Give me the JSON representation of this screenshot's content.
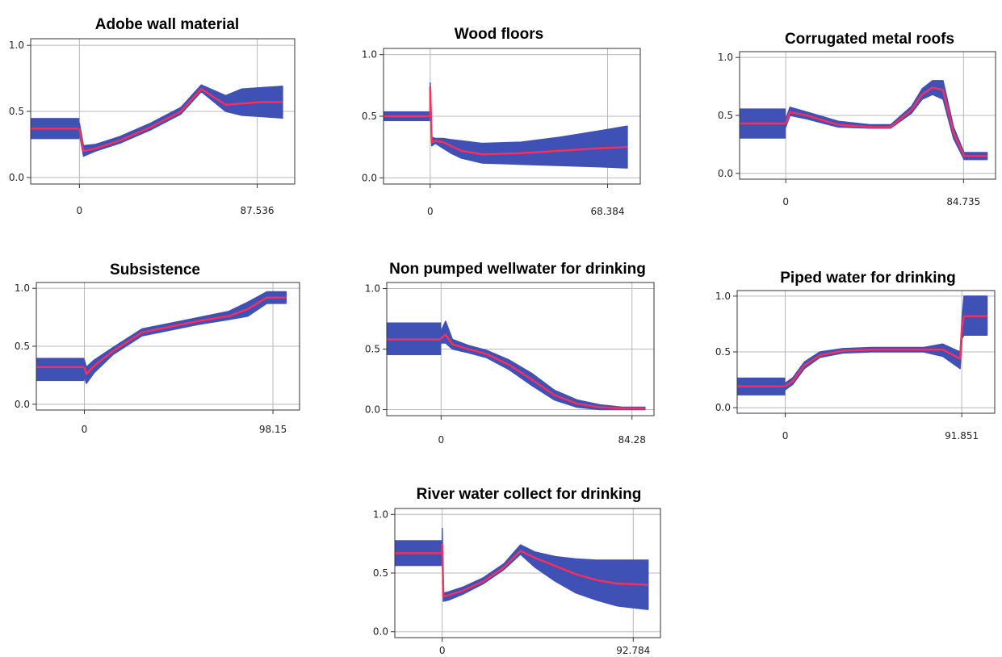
{
  "colors": {
    "band": "#3f51b5",
    "line": "#ff2d5a",
    "grid": "#b8b8b8",
    "frame": "#333333"
  },
  "chart_data": [
    {
      "type": "line",
      "panel": "a",
      "title": "Adobe wall material",
      "xlim": [
        -24,
        106
      ],
      "ylim": [
        -0.05,
        1.05
      ],
      "x_ticks": [
        "0",
        "87.536"
      ],
      "x_tick_values": [
        0,
        87.536
      ],
      "y_ticks": [
        "0.0",
        "0.5",
        "1.0"
      ],
      "y_tick_values": [
        0,
        0.5,
        1
      ],
      "step": {
        "x0": -24,
        "x1": 0,
        "mean": 0.37,
        "lower": 0.29,
        "upper": 0.45
      },
      "series": {
        "x": [
          0,
          2,
          8,
          20,
          35,
          50,
          60,
          72,
          80,
          90,
          100
        ],
        "mean": [
          0.37,
          0.2,
          0.22,
          0.28,
          0.38,
          0.5,
          0.67,
          0.55,
          0.56,
          0.57,
          0.57
        ],
        "lower": [
          0.33,
          0.16,
          0.2,
          0.26,
          0.36,
          0.48,
          0.65,
          0.5,
          0.47,
          0.46,
          0.45
        ],
        "upper": [
          0.41,
          0.24,
          0.25,
          0.31,
          0.41,
          0.53,
          0.7,
          0.62,
          0.67,
          0.68,
          0.69
        ]
      }
    },
    {
      "type": "line",
      "panel": "b",
      "title": "Wood floors",
      "xlim": [
        -18,
        81
      ],
      "ylim": [
        -0.05,
        1.05
      ],
      "x_ticks": [
        "0",
        "68.384"
      ],
      "x_tick_values": [
        0,
        68.384
      ],
      "y_ticks": [
        "0.0",
        "0.5",
        "1.0"
      ],
      "y_tick_values": [
        0,
        0.5,
        1
      ],
      "step": {
        "x0": -18,
        "x1": 0,
        "mean": 0.5,
        "lower": 0.46,
        "upper": 0.54
      },
      "series": {
        "x": [
          0,
          0.6,
          2,
          5,
          8,
          12,
          20,
          35,
          50,
          65,
          76
        ],
        "mean": [
          0.74,
          0.29,
          0.3,
          0.29,
          0.26,
          0.22,
          0.19,
          0.2,
          0.22,
          0.24,
          0.25
        ],
        "lower": [
          0.7,
          0.26,
          0.28,
          0.24,
          0.2,
          0.16,
          0.12,
          0.11,
          0.1,
          0.09,
          0.08
        ],
        "upper": [
          0.77,
          0.33,
          0.32,
          0.32,
          0.31,
          0.3,
          0.28,
          0.29,
          0.33,
          0.38,
          0.42
        ]
      }
    },
    {
      "type": "line",
      "panel": "c",
      "title": "Corrugated metal roofs",
      "xlim": [
        -22,
        100
      ],
      "ylim": [
        -0.05,
        1.05
      ],
      "x_ticks": [
        "0",
        "84.735"
      ],
      "x_tick_values": [
        0,
        84.735
      ],
      "y_ticks": [
        "0.0",
        "0.5",
        "1.0"
      ],
      "y_tick_values": [
        0,
        0.5,
        1
      ],
      "step": {
        "x0": -22,
        "x1": 0,
        "mean": 0.43,
        "lower": 0.3,
        "upper": 0.56
      },
      "series": {
        "x": [
          0,
          2,
          10,
          25,
          40,
          50,
          60,
          65,
          70,
          75,
          80,
          85,
          90,
          96
        ],
        "mean": [
          0.43,
          0.53,
          0.5,
          0.42,
          0.4,
          0.4,
          0.55,
          0.68,
          0.74,
          0.72,
          0.35,
          0.15,
          0.15,
          0.15
        ],
        "lower": [
          0.4,
          0.5,
          0.47,
          0.4,
          0.39,
          0.39,
          0.52,
          0.64,
          0.68,
          0.64,
          0.3,
          0.12,
          0.12,
          0.12
        ],
        "upper": [
          0.47,
          0.57,
          0.53,
          0.45,
          0.42,
          0.42,
          0.58,
          0.73,
          0.8,
          0.8,
          0.4,
          0.18,
          0.18,
          0.18
        ]
      }
    },
    {
      "type": "line",
      "panel": "d",
      "title": "Subsistence",
      "xlim": [
        -25,
        112
      ],
      "ylim": [
        -0.05,
        1.05
      ],
      "x_ticks": [
        "0",
        "98.15"
      ],
      "x_tick_values": [
        0,
        98.15
      ],
      "y_ticks": [
        "0.0",
        "0.5",
        "1.0"
      ],
      "y_tick_values": [
        0,
        0.5,
        1
      ],
      "step": {
        "x0": -25,
        "x1": 0,
        "mean": 0.32,
        "lower": 0.2,
        "upper": 0.4
      },
      "series": {
        "x": [
          0,
          1,
          5,
          15,
          30,
          45,
          60,
          75,
          85,
          95,
          105
        ],
        "mean": [
          0.32,
          0.26,
          0.33,
          0.46,
          0.62,
          0.67,
          0.72,
          0.76,
          0.82,
          0.92,
          0.92
        ],
        "lower": [
          0.24,
          0.18,
          0.27,
          0.43,
          0.59,
          0.64,
          0.69,
          0.73,
          0.76,
          0.87,
          0.87
        ],
        "upper": [
          0.38,
          0.32,
          0.38,
          0.49,
          0.65,
          0.7,
          0.75,
          0.8,
          0.88,
          0.97,
          0.97
        ]
      }
    },
    {
      "type": "line",
      "panel": "e",
      "title": "Non pumped wellwater for drinking",
      "xlim": [
        -24,
        94
      ],
      "ylim": [
        -0.05,
        1.05
      ],
      "x_ticks": [
        "0",
        "84.28"
      ],
      "x_tick_values": [
        0,
        84.28
      ],
      "y_ticks": [
        "0.0",
        "0.5",
        "1.0"
      ],
      "y_tick_values": [
        0,
        0.5,
        1
      ],
      "step": {
        "x0": -24,
        "x1": 0,
        "mean": 0.58,
        "lower": 0.45,
        "upper": 0.72
      },
      "series": {
        "x": [
          0,
          2,
          5,
          12,
          20,
          30,
          40,
          50,
          60,
          70,
          80,
          90
        ],
        "mean": [
          0.59,
          0.62,
          0.54,
          0.5,
          0.46,
          0.37,
          0.25,
          0.12,
          0.05,
          0.02,
          0.01,
          0.01
        ],
        "lower": [
          0.55,
          0.55,
          0.5,
          0.47,
          0.43,
          0.33,
          0.2,
          0.08,
          0.02,
          0.0,
          0.0,
          0.0
        ],
        "upper": [
          0.65,
          0.73,
          0.58,
          0.53,
          0.49,
          0.41,
          0.3,
          0.16,
          0.08,
          0.04,
          0.02,
          0.02
        ]
      }
    },
    {
      "type": "line",
      "panel": "f",
      "title": "Piped water for drinking",
      "xlim": [
        -25,
        109
      ],
      "ylim": [
        -0.05,
        1.05
      ],
      "x_ticks": [
        "0",
        "91.851"
      ],
      "x_tick_values": [
        0,
        91.851
      ],
      "y_ticks": [
        "0.0",
        "0.5",
        "1.0"
      ],
      "y_tick_values": [
        0,
        0.5,
        1
      ],
      "step": {
        "x0": -25,
        "x1": 0,
        "mean": 0.19,
        "lower": 0.11,
        "upper": 0.27
      },
      "series": {
        "x": [
          0,
          4,
          10,
          18,
          30,
          45,
          60,
          72,
          82,
          91,
          92,
          93,
          105
        ],
        "mean": [
          0.19,
          0.24,
          0.38,
          0.47,
          0.51,
          0.52,
          0.52,
          0.52,
          0.52,
          0.44,
          0.72,
          0.82,
          0.82
        ],
        "lower": [
          0.16,
          0.21,
          0.35,
          0.45,
          0.49,
          0.5,
          0.5,
          0.5,
          0.46,
          0.35,
          0.62,
          0.65,
          0.65
        ],
        "upper": [
          0.22,
          0.27,
          0.41,
          0.5,
          0.53,
          0.54,
          0.54,
          0.54,
          0.57,
          0.5,
          0.8,
          1.0,
          1.0
        ]
      }
    },
    {
      "type": "line",
      "panel": "g",
      "title": "River water collect for drinking",
      "xlim": [
        -23,
        106
      ],
      "ylim": [
        -0.05,
        1.05
      ],
      "x_ticks": [
        "0",
        "92.784"
      ],
      "x_tick_values": [
        0,
        92.784
      ],
      "y_ticks": [
        "0.0",
        "0.5",
        "1.0"
      ],
      "y_tick_values": [
        0,
        0.5,
        1
      ],
      "step": {
        "x0": -23,
        "x1": 0,
        "mean": 0.67,
        "lower": 0.56,
        "upper": 0.78
      },
      "series": {
        "x": [
          0,
          0.6,
          3,
          10,
          20,
          30,
          38,
          45,
          55,
          65,
          75,
          85,
          100
        ],
        "mean": [
          0.75,
          0.3,
          0.31,
          0.35,
          0.43,
          0.55,
          0.69,
          0.63,
          0.56,
          0.49,
          0.44,
          0.41,
          0.4
        ],
        "lower": [
          0.7,
          0.26,
          0.27,
          0.32,
          0.41,
          0.53,
          0.66,
          0.55,
          0.43,
          0.33,
          0.27,
          0.22,
          0.19
        ],
        "upper": [
          0.88,
          0.33,
          0.34,
          0.38,
          0.46,
          0.58,
          0.74,
          0.68,
          0.64,
          0.62,
          0.61,
          0.61,
          0.61
        ]
      }
    }
  ]
}
